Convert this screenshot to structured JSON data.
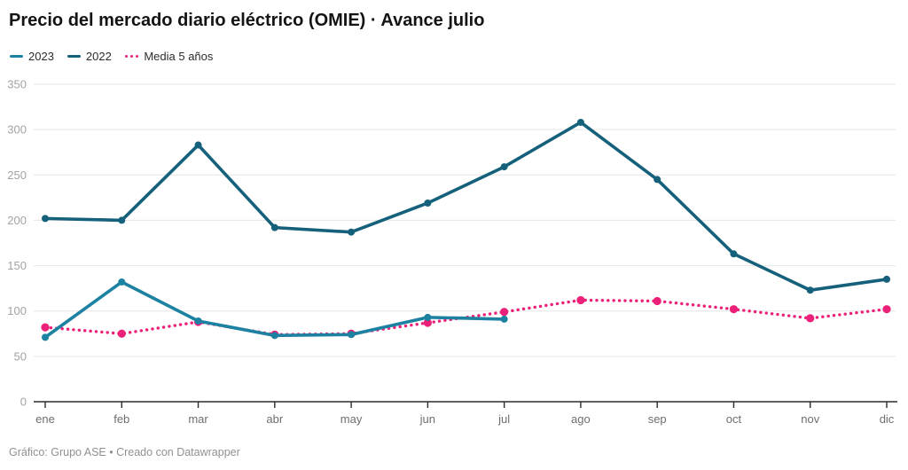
{
  "header": {
    "title": "Precio del mercado diario eléctrico (OMIE) · Avance julio"
  },
  "chart_data": {
    "type": "line",
    "title": "Precio del mercado diario eléctrico (OMIE) · Avance julio",
    "categories": [
      "ene",
      "feb",
      "mar",
      "abr",
      "may",
      "jun",
      "jul",
      "ago",
      "sep",
      "oct",
      "nov",
      "dic"
    ],
    "series": [
      {
        "name": "2023",
        "color": "#1d81a2",
        "style": "solid",
        "values": [
          71,
          132,
          89,
          73,
          74,
          93,
          91,
          null,
          null,
          null,
          null,
          null
        ]
      },
      {
        "name": "2022",
        "color": "#15607a",
        "style": "solid",
        "values": [
          202,
          200,
          283,
          192,
          187,
          219,
          259,
          308,
          245,
          163,
          123,
          135
        ]
      },
      {
        "name": "Media 5 años",
        "color": "#ed2079",
        "style": "dotted",
        "values": [
          82,
          75,
          88,
          74,
          75,
          87,
          99,
          112,
          111,
          102,
          92,
          102
        ]
      }
    ],
    "xlabel": "",
    "ylabel": "",
    "ylim": [
      0,
      350
    ],
    "yticks": [
      0,
      50,
      100,
      150,
      200,
      250,
      300,
      350
    ],
    "grid": true,
    "legend_position": "top"
  },
  "footer": {
    "attribution": "Gráfico: Grupo ASE • Creado con Datawrapper"
  }
}
